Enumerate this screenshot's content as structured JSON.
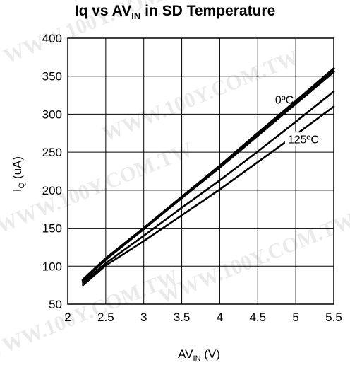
{
  "chart_data": {
    "type": "line",
    "title": "Iq vs AV",
    "title_subscript": "IN",
    "title_suffix": " in SD Temperature",
    "xlabel": "AV",
    "xlabel_subscript": "IN",
    "xlabel_suffix": " (V)",
    "ylabel": "I",
    "ylabel_subscript": "Q",
    "ylabel_suffix": " (uA)",
    "xlim": [
      2,
      5.5
    ],
    "ylim": [
      50,
      400
    ],
    "x_ticks": [
      "2",
      "2.5",
      "3",
      "3.5",
      "4",
      "4.5",
      "5",
      "5.5"
    ],
    "y_ticks": [
      "50",
      "100",
      "150",
      "200",
      "250",
      "300",
      "350",
      "400"
    ],
    "grid": true,
    "annotations": [
      {
        "text": "0ºC",
        "x": 4.85,
        "y": 314
      },
      {
        "text": "125ºC",
        "x": 5.1,
        "y": 262
      }
    ],
    "watermark": "WWW.100Y.COM.TW",
    "series": [
      {
        "x": [
          2.2,
          2.5,
          3,
          3.5,
          4,
          4.5,
          5,
          5.5
        ],
        "values": [
          82,
          110,
          150,
          191,
          232,
          275,
          317,
          360
        ]
      },
      {
        "x": [
          2.2,
          2.5,
          3,
          3.5,
          4,
          4.5,
          5,
          5.5
        ],
        "values": [
          81,
          109,
          149,
          190,
          230,
          272,
          314,
          356
        ]
      },
      {
        "x": [
          2.2,
          2.5,
          3,
          3.5,
          4,
          4.5,
          5,
          5.5
        ],
        "values": [
          78,
          104,
          140,
          177,
          213,
          251,
          290,
          330
        ]
      },
      {
        "x": [
          2.2,
          2.5,
          3,
          3.5,
          4,
          4.5,
          5,
          5.5
        ],
        "values": [
          75,
          101,
          133,
          167,
          201,
          237,
          273,
          310
        ]
      }
    ]
  }
}
